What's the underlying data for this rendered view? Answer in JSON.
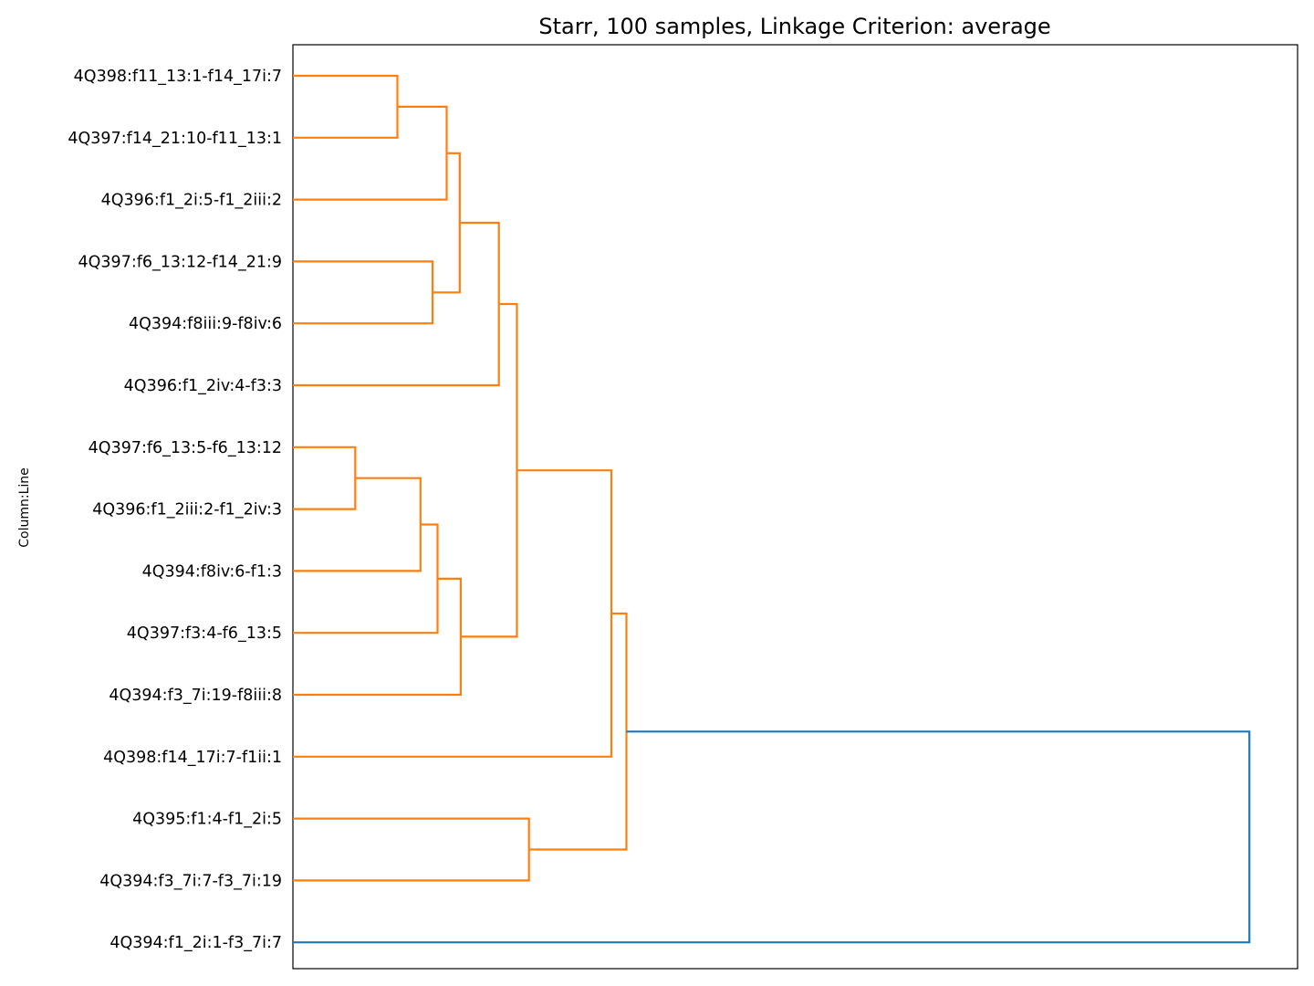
{
  "chart_data": {
    "type": "dendrogram",
    "orientation": "left",
    "title": "Starr, 100 samples, Linkage Criterion: average",
    "ylabel": "Column:Line",
    "xlabel": "",
    "x_ticks_shown": false,
    "leaves": [
      "4Q398:f11_13:1-f14_17i:7",
      "4Q397:f14_21:10-f11_13:1",
      "4Q396:f1_2i:5-f1_2iii:2",
      "4Q397:f6_13:12-f14_21:9",
      "4Q394:f8iii:9-f8iv:6",
      "4Q396:f1_2iv:4-f3:3",
      "4Q397:f6_13:5-f6_13:12",
      "4Q396:f1_2iii:2-f1_2iv:3",
      "4Q394:f8iv:6-f1:3",
      "4Q397:f3:4-f6_13:5",
      "4Q394:f3_7i:19-f8iii:8",
      "4Q398:f14_17i:7-f1ii:1",
      "4Q395:f1:4-f1_2i:5",
      "4Q394:f3_7i:7-f3_7i:19",
      "4Q394:f1_2i:1-f3_7i:7"
    ],
    "merges": [
      {
        "a": "L0",
        "b": "L1",
        "height": 0.104,
        "color": "#ff7f0e"
      },
      {
        "a": "L6",
        "b": "L7",
        "height": 0.062,
        "color": "#ff7f0e"
      },
      {
        "a": "L3",
        "b": "L4",
        "height": 0.139,
        "color": "#ff7f0e"
      },
      {
        "a": "M0",
        "b": "L2",
        "height": 0.153,
        "color": "#ff7f0e"
      },
      {
        "a": "M1",
        "b": "L8",
        "height": 0.127,
        "color": "#ff7f0e"
      },
      {
        "a": "M4",
        "b": "L9",
        "height": 0.144,
        "color": "#ff7f0e"
      },
      {
        "a": "M5",
        "b": "L10",
        "height": 0.167,
        "color": "#ff7f0e"
      },
      {
        "a": "M3",
        "b": "M2",
        "height": 0.166,
        "color": "#ff7f0e"
      },
      {
        "a": "M7",
        "b": "L5",
        "height": 0.205,
        "color": "#ff7f0e"
      },
      {
        "a": "M8",
        "b": "M6",
        "height": 0.223,
        "color": "#ff7f0e"
      },
      {
        "a": "M9",
        "b": "L11",
        "height": 0.317,
        "color": "#ff7f0e"
      },
      {
        "a": "L12",
        "b": "L13",
        "height": 0.235,
        "color": "#ff7f0e"
      },
      {
        "a": "M10",
        "b": "M11",
        "height": 0.332,
        "color": "#ff7f0e"
      },
      {
        "a": "M12",
        "b": "L14",
        "height": 0.952,
        "color": "#1f77b4"
      }
    ],
    "xlim": [
      0,
      1.0
    ],
    "colors": {
      "cluster": "#ff7f0e",
      "root": "#1f77b4",
      "frame": "#000000"
    }
  }
}
